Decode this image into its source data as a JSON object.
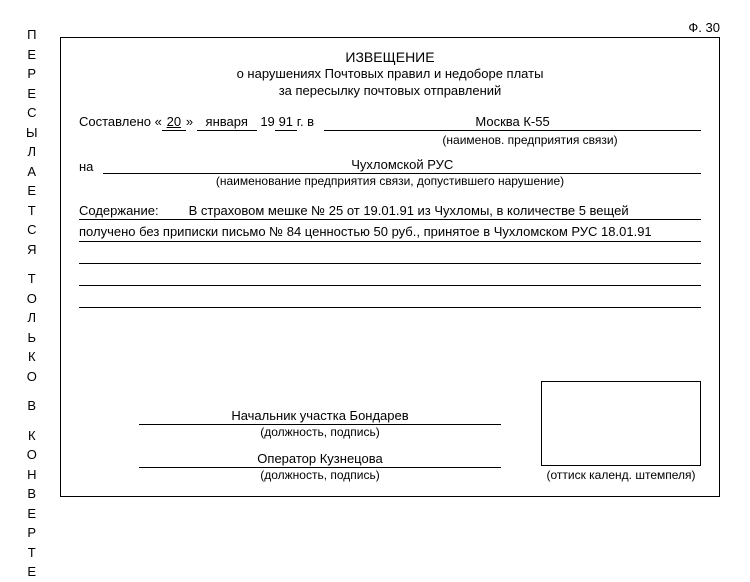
{
  "form_number": "Ф. 30",
  "vertical_label": "ПЕРЕСЫЛАЕТСЯ ТОЛЬКО В КОНВЕРТЕ",
  "title": {
    "line1": "ИЗВЕЩЕНИЕ",
    "line2": "о нарушениях Почтовых правил и недоборе платы",
    "line3": "за пересылку почтовых отправлений"
  },
  "compiled": {
    "prefix": "Составлено «",
    "day": "20",
    "mid1": "»",
    "month": "января",
    "mid2": "19",
    "year": "91",
    "suffix": "г. в",
    "place": "Москва К-55",
    "caption": "(наименов. предприятия связи)"
  },
  "addressed": {
    "prefix": "на",
    "org": "Чухломской РУС",
    "caption": "(наименование предприятия связи, допустившего нарушение)"
  },
  "content": {
    "label": "Содержание:",
    "line1": "В страховом мешке № 25 от 19.01.91 из Чухломы, в количестве 5 вещей",
    "line2": "получено без приписки письмо № 84 ценностью 50 руб., принятое в Чухломском РУС 18.01.91",
    "line3": "",
    "line4": "",
    "line5": ""
  },
  "signatures": {
    "sig1": "Начальник участка Бондарев",
    "cap1": "(должность, подпись)",
    "sig2": "Оператор Кузнецова",
    "cap2": "(должность, подпись)"
  },
  "stamp_caption": "(оттиск календ. штемпеля)"
}
